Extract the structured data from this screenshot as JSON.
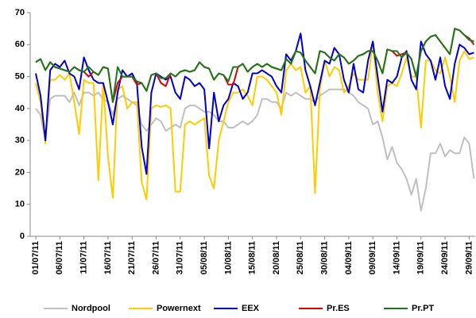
{
  "chart_data": {
    "type": "line",
    "categories": [
      "01/07/11",
      null,
      null,
      null,
      null,
      "06/07/11",
      null,
      null,
      null,
      null,
      "11/07/11",
      null,
      null,
      null,
      null,
      "16/07/11",
      null,
      null,
      null,
      null,
      "21/07/11",
      null,
      null,
      null,
      null,
      "26/07/11",
      null,
      null,
      null,
      null,
      "31/07/11",
      null,
      null,
      null,
      null,
      "05/08/11",
      null,
      null,
      null,
      null,
      "10/08/11",
      null,
      null,
      null,
      null,
      "15/08/11",
      null,
      null,
      null,
      null,
      "20/08/11",
      null,
      null,
      null,
      null,
      "25/08/11",
      null,
      null,
      null,
      null,
      "30/08/11",
      null,
      null,
      null,
      null,
      "04/09/11",
      null,
      null,
      null,
      null,
      "09/09/11",
      null,
      null,
      null,
      null,
      "14/09/11",
      null,
      null,
      null,
      null,
      "19/09/11",
      null,
      null,
      null,
      null,
      "24/09/11",
      null,
      null,
      null,
      null,
      "29/09/11",
      null
    ],
    "series": [
      {
        "name": "Nordpool",
        "color": "#bfbfbf",
        "values": [
          40,
          38,
          30,
          43,
          44,
          44,
          44,
          42,
          45,
          41,
          45,
          45,
          44,
          45,
          43,
          42,
          38,
          43,
          44,
          43,
          42,
          41,
          35,
          33,
          35,
          37,
          36,
          33,
          34,
          35,
          34,
          40,
          41,
          41,
          40,
          39,
          39,
          38,
          36,
          36,
          34,
          34,
          35,
          36,
          35,
          36,
          38,
          43,
          43,
          42,
          42,
          40,
          45,
          44,
          45,
          44,
          43,
          43,
          42,
          44,
          45,
          46,
          46,
          46,
          46,
          45,
          44,
          42,
          41,
          40,
          35,
          36,
          31,
          24,
          28,
          23,
          21,
          18,
          13,
          18,
          8,
          15,
          26,
          26,
          29,
          25,
          27,
          26,
          26,
          31,
          29,
          18
        ]
      },
      {
        "name": "Powernext",
        "color": "#ffcc00",
        "values": [
          48,
          42,
          29,
          49,
          49,
          50.5,
          49,
          51,
          42,
          32,
          49,
          48,
          48,
          17.5,
          48,
          25,
          12,
          46,
          47,
          40,
          42,
          42,
          17,
          11.5,
          40,
          41,
          40.5,
          41,
          40,
          14,
          14,
          35,
          36,
          35,
          36,
          37,
          19,
          15,
          30,
          36,
          42,
          45,
          45,
          46,
          44,
          41,
          50,
          50,
          49,
          47,
          45,
          38,
          52,
          54,
          52,
          53,
          45,
          47,
          13.5,
          46,
          55,
          50,
          53,
          52,
          45,
          47,
          51,
          49,
          49,
          49,
          61,
          45,
          36,
          47,
          48,
          47,
          51,
          56,
          50,
          50,
          34,
          55,
          55,
          52,
          51,
          56,
          50,
          42,
          55,
          58,
          55.5,
          56
        ]
      },
      {
        "name": "EEX",
        "color": "#0000cc",
        "values": [
          51,
          44,
          30,
          52,
          54,
          53,
          55,
          51,
          50,
          46,
          56,
          52,
          49,
          48,
          48,
          42,
          35,
          45,
          52,
          50,
          51,
          48,
          28,
          19.5,
          45,
          51,
          50,
          49,
          50,
          45,
          43,
          50,
          49,
          47,
          48,
          46,
          27.5,
          45,
          36,
          41,
          43,
          48,
          47,
          43,
          45,
          51,
          51,
          52,
          51,
          50,
          47,
          45,
          57,
          55,
          58,
          63.5,
          52,
          47,
          41,
          48,
          55,
          54,
          59,
          57,
          49,
          45,
          54,
          46,
          45,
          55,
          61,
          50,
          39,
          49,
          48,
          50,
          56,
          58,
          49,
          46,
          61,
          57,
          55,
          49,
          56,
          47,
          43,
          54,
          60,
          59,
          57,
          57.5
        ]
      },
      {
        "name": "Pr.ES",
        "color": "#e00000",
        "values": [
          54.5,
          55.5,
          52,
          54.5,
          53,
          52.5,
          52,
          51.5,
          53,
          52,
          51.5,
          50,
          51.5,
          50.5,
          53,
          52.5,
          42,
          48,
          50,
          50,
          50,
          47.5,
          48,
          45.5,
          50.5,
          51,
          48,
          47,
          51,
          50,
          51.5,
          52,
          51.5,
          52,
          54.5,
          53,
          52.5,
          49,
          51,
          50.5,
          47.5,
          47.5,
          53,
          54,
          51.5,
          53,
          54,
          53,
          54,
          53,
          52.5,
          52,
          55.5,
          54,
          58,
          57.5,
          55,
          53,
          51,
          58,
          57.5,
          56,
          55,
          57,
          56,
          54,
          55,
          56.5,
          57,
          58,
          58,
          55,
          51,
          58.5,
          58,
          56.5,
          57,
          57.5,
          55.5,
          50,
          58,
          61,
          62.5,
          63,
          61,
          59,
          57,
          65,
          64.5,
          63,
          62,
          60
        ]
      },
      {
        "name": "Pr.PT",
        "color": "#1a7a1a",
        "values": [
          54.5,
          55.5,
          52,
          54.5,
          53,
          52.5,
          52,
          51.5,
          53,
          52,
          51.5,
          53,
          51.5,
          50.5,
          53,
          52.5,
          42,
          53,
          50,
          50,
          50,
          48.5,
          48,
          45.5,
          50.5,
          51,
          49.5,
          49.5,
          51,
          50,
          51.5,
          52,
          51.5,
          52,
          54.5,
          53,
          52.5,
          49,
          51,
          50.5,
          48.5,
          53,
          53,
          54,
          51.5,
          53,
          54,
          53,
          54,
          53,
          52.5,
          52,
          55.5,
          54,
          58,
          57.5,
          55,
          53,
          51,
          58,
          57.5,
          56,
          55,
          57,
          56,
          54,
          55,
          56.5,
          57,
          58,
          58,
          55,
          51,
          58.5,
          58,
          58,
          56,
          57.5,
          55.5,
          50,
          58,
          61,
          62.5,
          63,
          61,
          59,
          57,
          65,
          64.5,
          63,
          61.5,
          61
        ]
      }
    ],
    "ylim": [
      0,
      70
    ],
    "yticks": [
      0,
      10,
      20,
      30,
      40,
      50,
      60,
      70
    ],
    "grid": false,
    "legend": "bottom"
  }
}
